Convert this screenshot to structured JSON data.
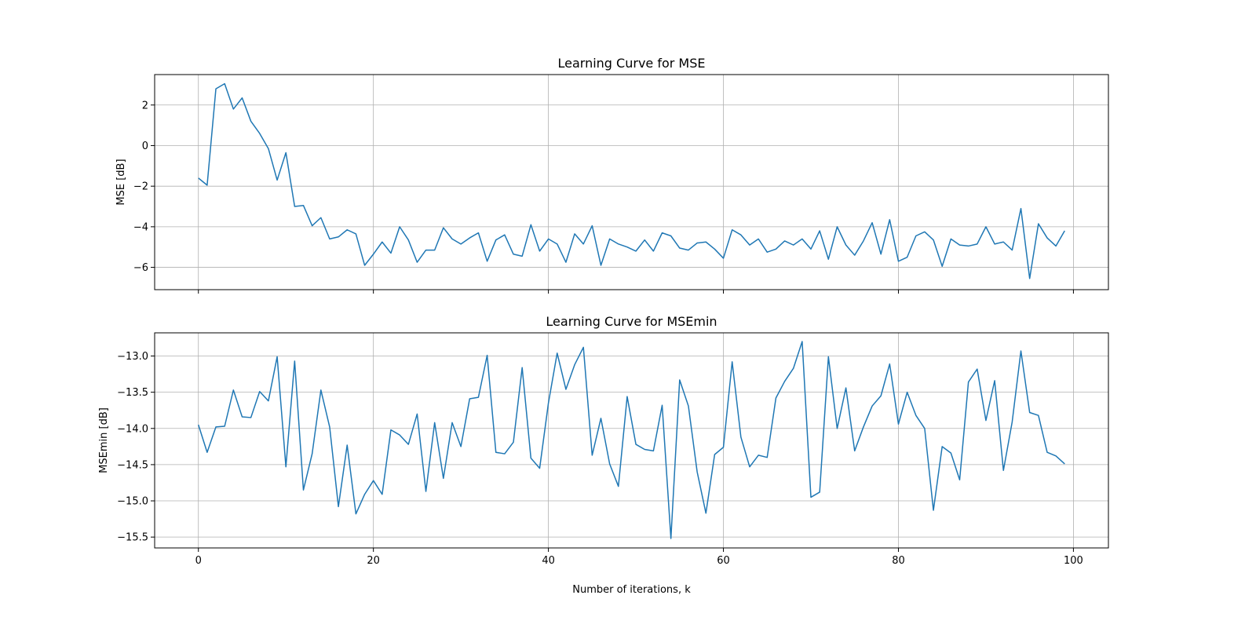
{
  "chart_data": [
    {
      "type": "line",
      "title": "Learning Curve for MSE",
      "xlabel": "",
      "ylabel": "MSE [dB]",
      "xlim": [
        -5,
        104
      ],
      "ylim": [
        -7.1,
        3.5
      ],
      "xticks": [
        0,
        20,
        40,
        60,
        80,
        100
      ],
      "xtick_labels": [],
      "yticks": [
        2,
        0,
        -2,
        -4,
        -6
      ],
      "ytick_labels": [
        "2",
        "0",
        "−2",
        "−4",
        "−6"
      ],
      "grid": true,
      "line_color": "#1f77b4",
      "series": [
        {
          "x": [
            0,
            1,
            2,
            3,
            4,
            5,
            6,
            7,
            8,
            9,
            10,
            11,
            12,
            13,
            14,
            15,
            16,
            17,
            18,
            19,
            20,
            21,
            22,
            23,
            24,
            25,
            26,
            27,
            28,
            29,
            30,
            31,
            32,
            33,
            34,
            35,
            36,
            37,
            38,
            39,
            40,
            41,
            42,
            43,
            44,
            45,
            46,
            47,
            48,
            49,
            50,
            51,
            52,
            53,
            54,
            55,
            56,
            57,
            58,
            59,
            60,
            61,
            62,
            63,
            64,
            65,
            66,
            67,
            68,
            69,
            70,
            71,
            72,
            73,
            74,
            75,
            76,
            77,
            78,
            79,
            80,
            81,
            82,
            83,
            84,
            85,
            86,
            87,
            88,
            89,
            90,
            91,
            92,
            93,
            94,
            95,
            96,
            97,
            98,
            99
          ],
          "values": [
            -1.6,
            -1.95,
            2.8,
            3.05,
            1.8,
            2.35,
            1.2,
            0.6,
            -0.15,
            -1.7,
            -0.35,
            -3.0,
            -2.95,
            -3.95,
            -3.55,
            -4.6,
            -4.5,
            -4.15,
            -4.35,
            -5.9,
            -5.35,
            -4.75,
            -5.3,
            -4.0,
            -4.65,
            -5.75,
            -5.15,
            -5.15,
            -4.05,
            -4.6,
            -4.85,
            -4.55,
            -4.3,
            -5.7,
            -4.65,
            -4.4,
            -5.35,
            -5.45,
            -3.9,
            -5.2,
            -4.6,
            -4.85,
            -5.75,
            -4.35,
            -4.85,
            -3.95,
            -5.9,
            -4.6,
            -4.85,
            -5.0,
            -5.2,
            -4.65,
            -5.2,
            -4.3,
            -4.45,
            -5.05,
            -5.15,
            -4.8,
            -4.75,
            -5.1,
            -5.55,
            -4.15,
            -4.4,
            -4.9,
            -4.6,
            -5.25,
            -5.1,
            -4.7,
            -4.9,
            -4.6,
            -5.1,
            -4.2,
            -5.6,
            -4.0,
            -4.9,
            -5.4,
            -4.7,
            -3.8,
            -5.35,
            -3.65,
            -5.7,
            -5.5,
            -4.45,
            -4.25,
            -4.65,
            -5.95,
            -4.6,
            -4.9,
            -4.95,
            -4.85,
            -4.0,
            -4.85,
            -4.75,
            -5.15,
            -3.1,
            -6.55,
            -3.85,
            -4.55,
            -4.95,
            -4.2
          ]
        }
      ]
    },
    {
      "type": "line",
      "title": "Learning Curve for MSEmin",
      "xlabel": "Number of iterations, k",
      "ylabel": "MSEmin [dB]",
      "xlim": [
        -5,
        104
      ],
      "ylim": [
        -15.65,
        -12.68
      ],
      "xticks": [
        0,
        20,
        40,
        60,
        80,
        100
      ],
      "xtick_labels": [
        "0",
        "20",
        "40",
        "60",
        "80",
        "100"
      ],
      "yticks": [
        -13.0,
        -13.5,
        -14.0,
        -14.5,
        -15.0,
        -15.5
      ],
      "ytick_labels": [
        "−13.0",
        "−13.5",
        "−14.0",
        "−14.5",
        "−15.0",
        "−15.5"
      ],
      "grid": true,
      "line_color": "#1f77b4",
      "series": [
        {
          "x": [
            0,
            1,
            2,
            3,
            4,
            5,
            6,
            7,
            8,
            9,
            10,
            11,
            12,
            13,
            14,
            15,
            16,
            17,
            18,
            19,
            20,
            21,
            22,
            23,
            24,
            25,
            26,
            27,
            28,
            29,
            30,
            31,
            32,
            33,
            34,
            35,
            36,
            37,
            38,
            39,
            40,
            41,
            42,
            43,
            44,
            45,
            46,
            47,
            48,
            49,
            50,
            51,
            52,
            53,
            54,
            55,
            56,
            57,
            58,
            59,
            60,
            61,
            62,
            63,
            64,
            65,
            66,
            67,
            68,
            69,
            70,
            71,
            72,
            73,
            74,
            75,
            76,
            77,
            78,
            79,
            80,
            81,
            82,
            83,
            84,
            85,
            86,
            87,
            88,
            89,
            90,
            91,
            92,
            93,
            94,
            95,
            96,
            97,
            98,
            99
          ],
          "values": [
            -13.95,
            -14.33,
            -13.98,
            -13.97,
            -13.47,
            -13.84,
            -13.85,
            -13.49,
            -13.62,
            -13.01,
            -14.53,
            -13.07,
            -14.85,
            -14.35,
            -13.47,
            -13.98,
            -15.08,
            -14.23,
            -15.18,
            -14.91,
            -14.72,
            -14.91,
            -14.02,
            -14.09,
            -14.22,
            -13.8,
            -14.87,
            -13.92,
            -14.69,
            -13.92,
            -14.25,
            -13.59,
            -13.57,
            -12.99,
            -14.33,
            -14.35,
            -14.19,
            -13.16,
            -14.41,
            -14.55,
            -13.65,
            -12.96,
            -13.46,
            -13.12,
            -12.88,
            -14.37,
            -13.86,
            -14.49,
            -14.8,
            -13.56,
            -14.22,
            -14.29,
            -14.31,
            -13.68,
            -15.52,
            -13.33,
            -13.69,
            -14.6,
            -15.17,
            -14.36,
            -14.26,
            -13.08,
            -14.12,
            -14.53,
            -14.37,
            -14.4,
            -13.58,
            -13.35,
            -13.17,
            -12.8,
            -14.95,
            -14.88,
            -13.01,
            -14.0,
            -13.44,
            -14.31,
            -13.98,
            -13.69,
            -13.55,
            -13.11,
            -13.94,
            -13.5,
            -13.82,
            -14.0,
            -15.13,
            -14.25,
            -14.34,
            -14.71,
            -13.36,
            -13.18,
            -13.89,
            -13.34,
            -14.58,
            -13.91,
            -12.93,
            -13.78,
            -13.82,
            -14.33,
            -14.38,
            -14.49
          ]
        }
      ]
    }
  ]
}
